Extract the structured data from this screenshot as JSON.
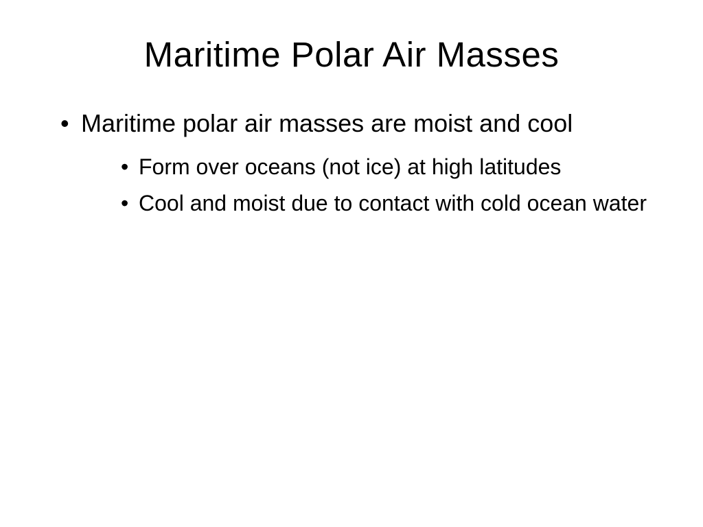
{
  "slide": {
    "title": "Maritime Polar Air Masses",
    "bullets": {
      "item0": {
        "text": "Maritime polar air masses are moist and cool",
        "sub0": "Form over oceans (not ice) at high latitudes",
        "sub1": "Cool and moist due to contact with cold ocean water"
      }
    },
    "title_fontsize": 51,
    "body_fontsize_l1": 36,
    "body_fontsize_l2": 32,
    "background_color": "#ffffff",
    "text_color": "#000000"
  }
}
